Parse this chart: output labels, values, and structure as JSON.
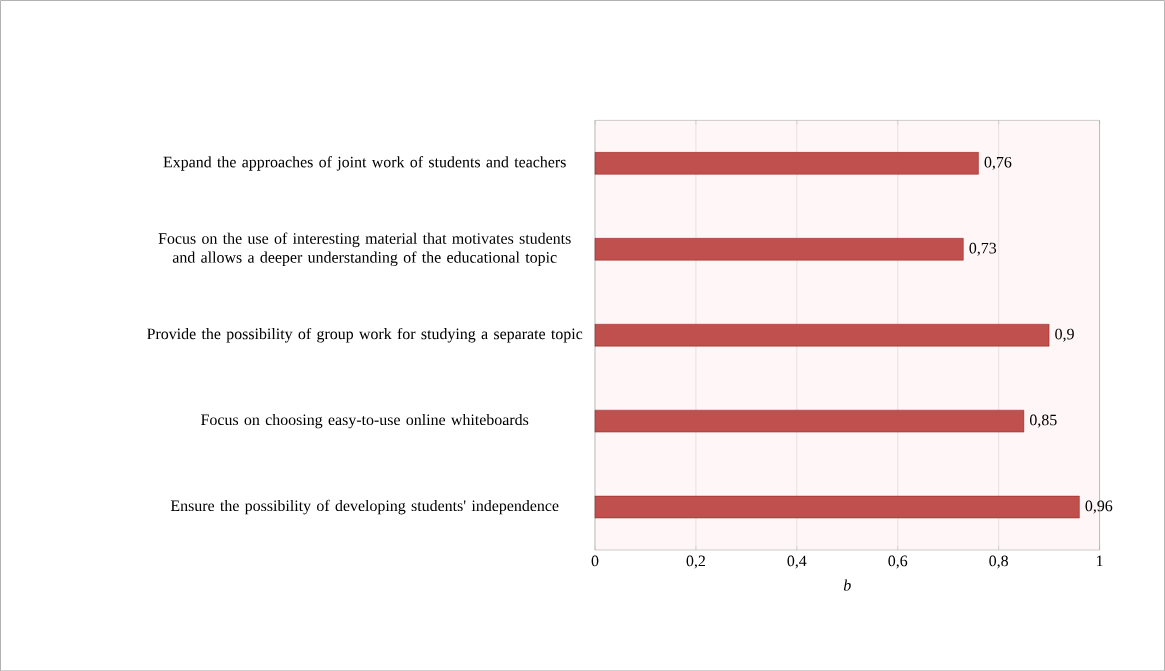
{
  "chart_data": {
    "type": "bar",
    "orientation": "horizontal",
    "xlabel": "b",
    "categories": [
      "Expand the approaches of joint work of students and teachers",
      "Focus on the use of interesting material that motivates students and allows a deeper understanding of the educational topic",
      "Provide the possibility of group work for studying a separate topic",
      "Focus on choosing easy-to-use online whiteboards",
      "Ensure the possibility of developing students' independence"
    ],
    "values": [
      0.76,
      0.73,
      0.9,
      0.85,
      0.96
    ],
    "value_labels": [
      "0,76",
      "0,73",
      "0,9",
      "0,85",
      "0,96"
    ],
    "color": "#c0504d",
    "xlim": [
      0,
      1
    ],
    "xticks": [
      0,
      {
        "value": 0.2,
        "label": "0,2"
      },
      {
        "value": 0.4,
        "label": "0,4"
      },
      {
        "value": 0.6,
        "label": "0,6"
      },
      {
        "value": 0.8,
        "label": "0,8"
      },
      1
    ],
    "grid": "x"
  }
}
